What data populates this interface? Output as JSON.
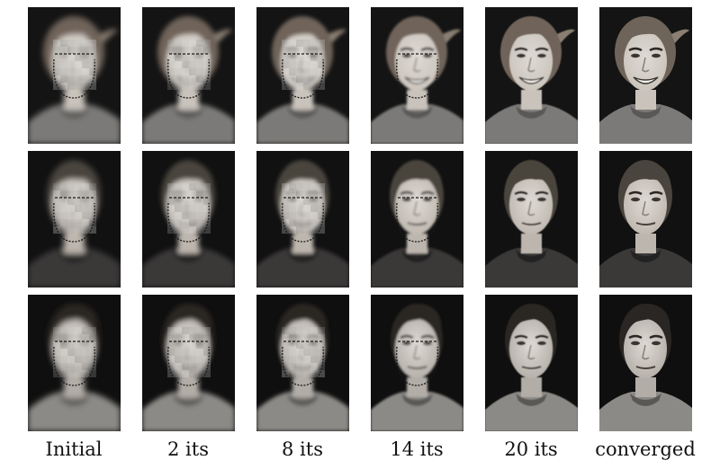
{
  "figure": {
    "columns": [
      {
        "label": "Initial",
        "blur": 3.2,
        "pixelated": true,
        "contour": true
      },
      {
        "label": "2 its",
        "blur": 2.6,
        "pixelated": true,
        "contour": true
      },
      {
        "label": "8 its",
        "blur": 2.0,
        "pixelated": true,
        "contour": true
      },
      {
        "label": "14 its",
        "blur": 1.2,
        "pixelated": false,
        "contour": true
      },
      {
        "label": "20 its",
        "blur": 0.6,
        "pixelated": false,
        "contour": false
      },
      {
        "label": "converged",
        "blur": 0.0,
        "pixelated": false,
        "contour": false
      }
    ],
    "rows": [
      {
        "subject": "woman-smiling",
        "hair_color": "#6f645a",
        "skin_color": "#c9c3bb",
        "clothing_color": "#7c7a78",
        "background_color": "#141414"
      },
      {
        "subject": "woman-short-hair",
        "hair_color": "#4a443e",
        "skin_color": "#bdb6ae",
        "clothing_color": "#3b3938",
        "background_color": "#111111"
      },
      {
        "subject": "man-dark-hair",
        "hair_color": "#2a2623",
        "skin_color": "#b3ada7",
        "clothing_color": "#8c8a86",
        "background_color": "#0f0f0f"
      }
    ]
  }
}
